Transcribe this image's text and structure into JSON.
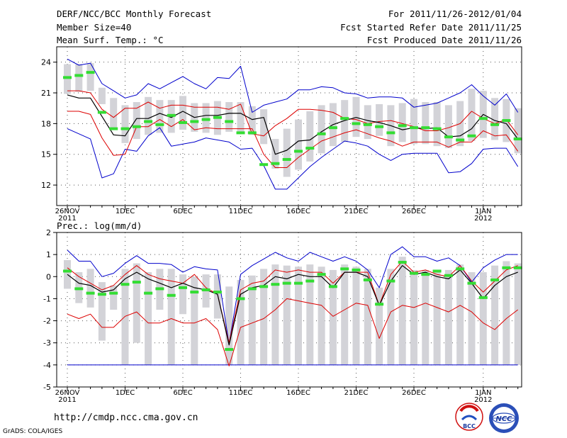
{
  "header": {
    "title": "DERF/NCC/BCC Monthly Forecast",
    "member_size": "Member Size=40",
    "variable": "Mean Surf. Temp.: °C",
    "period": "For 2011/11/26-2012/01/04",
    "started": "Fcst Started Refer Date 2011/11/25",
    "produced": "Fcst Produced Date 2011/11/26"
  },
  "footer": {
    "url": "http://cmdp.ncc.cma.gov.cn",
    "grads": "GrADS: COLA/IGES",
    "logo_bcc": "BCC",
    "logo_ncc": "NCC"
  },
  "colors": {
    "box": "#d3d3d8",
    "envelope": "#0000cc",
    "spread": "#dd0000",
    "mean": "#000000",
    "median": "#33dd33"
  },
  "chart_data": [
    {
      "type": "box",
      "title": "Mean Surf. Temp.: °C",
      "ylim": [
        10,
        25.5
      ],
      "yticks": [
        12,
        15,
        18,
        21,
        24
      ],
      "grid": true,
      "xlim": [
        0,
        39.5
      ],
      "x_ticks": [
        {
          "day": 0,
          "label": "26NOV",
          "sub": "2011"
        },
        {
          "day": 5,
          "label": "1DEC",
          "sub": ""
        },
        {
          "day": 10,
          "label": "6DEC",
          "sub": ""
        },
        {
          "day": 15,
          "label": "11DEC",
          "sub": ""
        },
        {
          "day": 20,
          "label": "16DEC",
          "sub": ""
        },
        {
          "day": 25,
          "label": "21DEC",
          "sub": ""
        },
        {
          "day": 30,
          "label": "26DEC",
          "sub": ""
        },
        {
          "day": 36,
          "label": "1JAN",
          "sub": "2012"
        }
      ],
      "box_low": [
        20.9,
        21.1,
        21.2,
        19.9,
        17.6,
        16.1,
        16.5,
        16.9,
        17.1,
        17.1,
        17.4,
        17.2,
        17.1,
        16.9,
        17.2,
        17.0,
        16.9,
        16.0,
        13.6,
        12.8,
        13.5,
        14.3,
        15.1,
        15.8,
        16.2,
        16.7,
        16.5,
        16.8,
        15.8,
        16.2,
        16.0,
        16.0,
        15.8,
        15.6,
        15.8,
        16.3,
        16.6,
        16.4,
        16.2,
        15.1
      ],
      "box_high": [
        23.8,
        23.8,
        23.9,
        21.5,
        20.5,
        19.8,
        20.1,
        20.6,
        20.3,
        20.3,
        20.7,
        20.0,
        20.0,
        20.2,
        20.1,
        20.1,
        19.7,
        19.4,
        16.5,
        17.5,
        18.4,
        19.2,
        19.8,
        20.0,
        20.3,
        20.6,
        19.8,
        19.9,
        19.8,
        20.0,
        20.4,
        20.1,
        20.1,
        19.8,
        20.2,
        21.4,
        21.2,
        20.5,
        20.4,
        19.5
      ],
      "max": [
        24.3,
        23.7,
        23.9,
        21.9,
        21.2,
        20.5,
        20.8,
        21.9,
        21.4,
        22.0,
        22.6,
        21.9,
        21.4,
        22.5,
        22.4,
        23.6,
        19.1,
        19.8,
        20.1,
        20.4,
        21.3,
        21.3,
        21.6,
        21.5,
        21.0,
        20.9,
        20.5,
        20.6,
        20.6,
        20.5,
        19.6,
        19.8,
        20.0,
        20.5,
        21.0,
        21.8,
        20.7,
        19.8,
        20.9,
        19.1
      ],
      "spread_high": [
        21.2,
        21.2,
        21.0,
        19.4,
        18.6,
        19.5,
        19.5,
        20.1,
        19.5,
        19.8,
        19.8,
        19.6,
        19.6,
        19.6,
        19.4,
        19.9,
        17.0,
        16.8,
        17.8,
        18.5,
        19.4,
        19.4,
        19.3,
        19.1,
        18.5,
        18.4,
        18.0,
        18.2,
        18.3,
        18.0,
        17.7,
        17.3,
        17.3,
        17.6,
        18.0,
        19.2,
        18.5,
        18.0,
        18.4,
        16.9
      ],
      "mean": [
        20.8,
        20.5,
        20.5,
        18.7,
        16.9,
        16.8,
        18.5,
        18.5,
        19.0,
        18.6,
        19.2,
        18.6,
        18.8,
        18.8,
        19.0,
        19.0,
        18.4,
        18.6,
        15.0,
        15.4,
        16.3,
        16.4,
        17.2,
        17.9,
        18.3,
        18.6,
        18.3,
        18.1,
        17.8,
        17.4,
        17.6,
        17.5,
        17.6,
        16.7,
        16.8,
        17.5,
        18.9,
        18.3,
        18.0,
        16.5
      ],
      "spread_low": [
        19.2,
        19.2,
        18.9,
        16.6,
        14.9,
        15.0,
        17.7,
        17.7,
        18.4,
        17.7,
        18.4,
        17.4,
        17.6,
        17.5,
        17.5,
        17.5,
        17.5,
        15.0,
        13.7,
        13.7,
        14.7,
        15.5,
        16.3,
        16.7,
        17.1,
        17.4,
        17.0,
        16.6,
        16.3,
        15.8,
        16.2,
        16.2,
        16.2,
        15.7,
        16.2,
        16.2,
        17.3,
        16.8,
        16.9,
        15.3
      ],
      "min": [
        17.5,
        17.0,
        16.5,
        12.7,
        13.1,
        15.5,
        15.3,
        16.8,
        17.6,
        15.8,
        16.0,
        16.2,
        16.6,
        16.4,
        16.2,
        15.5,
        15.6,
        13.9,
        11.6,
        11.6,
        12.7,
        13.8,
        14.7,
        15.5,
        16.3,
        16.1,
        15.8,
        15.0,
        14.4,
        15.0,
        15.1,
        15.1,
        15.1,
        13.2,
        13.3,
        14.1,
        15.5,
        15.6,
        15.6,
        13.8
      ],
      "median": [
        22.5,
        22.7,
        23.0,
        19.1,
        17.5,
        17.5,
        17.7,
        18.2,
        17.9,
        18.8,
        18.1,
        18.2,
        18.4,
        18.6,
        18.2,
        17.1,
        17.1,
        14.0,
        14.1,
        14.5,
        15.3,
        15.6,
        17.0,
        17.6,
        18.5,
        18.0,
        17.9,
        17.7,
        17.1,
        17.8,
        17.6,
        17.6,
        17.5,
        16.7,
        16.4,
        16.8,
        18.5,
        17.9,
        18.3,
        16.5
      ]
    },
    {
      "type": "box",
      "title": "Prec.: log(mm/d)",
      "ylim": [
        -5,
        2
      ],
      "yticks": [
        -5,
        -4,
        -3,
        -2,
        -1,
        0,
        1,
        2
      ],
      "grid": true,
      "xlim": [
        0,
        39.5
      ],
      "x_ticks": [
        {
          "day": 0,
          "label": "26NOV",
          "sub": "2011"
        },
        {
          "day": 5,
          "label": "1DEC",
          "sub": ""
        },
        {
          "day": 10,
          "label": "6DEC",
          "sub": ""
        },
        {
          "day": 15,
          "label": "11DEC",
          "sub": ""
        },
        {
          "day": 20,
          "label": "16DEC",
          "sub": ""
        },
        {
          "day": 25,
          "label": "21DEC",
          "sub": ""
        },
        {
          "day": 30,
          "label": "26DEC",
          "sub": ""
        },
        {
          "day": 36,
          "label": "1JAN",
          "sub": "2012"
        }
      ],
      "box_low": [
        -0.55,
        -1.2,
        -1.4,
        -2.9,
        -1.5,
        -4.0,
        -3.0,
        -4.0,
        -1.5,
        -4.0,
        -1.7,
        -4.0,
        -1.4,
        -1.9,
        -4.0,
        -4.0,
        -4.0,
        -4.0,
        -4.0,
        -4.0,
        -4.0,
        -4.0,
        -4.0,
        -4.0,
        -4.0,
        -4.0,
        -4.0,
        -4.0,
        -4.0,
        -4.0,
        -4.0,
        -4.0,
        -4.0,
        -4.0,
        -4.0,
        -4.0,
        -4.0,
        -4.0,
        -4.0,
        -4.0
      ],
      "box_high": [
        0.75,
        0.2,
        0.35,
        -0.25,
        -0.4,
        0.35,
        0.6,
        0.2,
        0.35,
        0.35,
        0.1,
        0.0,
        0.1,
        0.1,
        -0.45,
        -0.15,
        0.05,
        0.35,
        0.55,
        0.5,
        0.45,
        0.55,
        0.45,
        0.3,
        0.55,
        0.45,
        0.35,
        -0.5,
        0.35,
        0.9,
        0.3,
        0.3,
        0.25,
        0.3,
        0.55,
        0.2,
        0.2,
        0.5,
        0.7,
        0.6
      ],
      "max": [
        1.2,
        0.7,
        0.7,
        0.0,
        0.15,
        0.6,
        0.95,
        0.6,
        0.6,
        0.55,
        0.2,
        0.45,
        0.35,
        0.3,
        -3.05,
        0.1,
        0.5,
        0.8,
        1.1,
        0.85,
        0.7,
        1.1,
        0.9,
        0.7,
        0.9,
        0.7,
        0.3,
        -0.5,
        1.0,
        1.35,
        0.9,
        0.9,
        0.7,
        0.85,
        0.5,
        -0.25,
        0.4,
        0.75,
        1.0,
        1.0
      ],
      "spread_high": [
        0.4,
        0.0,
        -0.3,
        -0.6,
        -0.4,
        0.1,
        0.5,
        0.1,
        -0.1,
        -0.2,
        -0.3,
        0.1,
        -0.5,
        -0.8,
        -3.0,
        -0.6,
        -0.3,
        -0.2,
        0.3,
        0.2,
        0.3,
        0.2,
        0.2,
        -0.3,
        0.2,
        0.2,
        0.2,
        -1.3,
        0.1,
        0.7,
        0.2,
        0.3,
        0.1,
        0.0,
        0.5,
        -0.2,
        -0.7,
        -0.2,
        0.3,
        0.5
      ],
      "mean": [
        0.1,
        -0.3,
        -0.4,
        -0.7,
        -0.6,
        -0.1,
        0.2,
        -0.1,
        -0.3,
        -0.5,
        -0.3,
        -0.5,
        -0.6,
        -0.8,
        -3.1,
        -0.8,
        -0.5,
        -0.4,
        0.0,
        -0.1,
        0.1,
        0.0,
        0.0,
        -0.5,
        0.2,
        0.2,
        0.0,
        -1.3,
        -0.2,
        0.5,
        0.1,
        0.2,
        0.0,
        -0.1,
        0.3,
        -0.3,
        -1.0,
        -0.4,
        0.0,
        0.2
      ],
      "spread_low": [
        -1.7,
        -1.9,
        -1.7,
        -2.3,
        -2.3,
        -1.8,
        -1.6,
        -2.1,
        -2.1,
        -1.9,
        -2.1,
        -2.1,
        -1.9,
        -2.4,
        -4.05,
        -2.3,
        -2.1,
        -1.9,
        -1.5,
        -1.0,
        -1.1,
        -1.2,
        -1.3,
        -1.8,
        -1.5,
        -1.2,
        -1.3,
        -2.8,
        -1.6,
        -1.3,
        -1.4,
        -1.2,
        -1.4,
        -1.6,
        -1.3,
        -1.6,
        -2.1,
        -2.4,
        -1.9,
        -1.5
      ],
      "min": [
        -4.0,
        -4.0,
        -4.0,
        -4.0,
        -4.0,
        -4.0,
        -4.0,
        -4.0,
        -4.0,
        -4.0,
        -4.0,
        -4.0,
        -4.0,
        -4.0,
        -4.0,
        -4.0,
        -4.0,
        -4.0,
        -4.0,
        -4.0,
        -4.0,
        -4.0,
        -4.0,
        -4.0,
        -4.0,
        -4.0,
        -4.0,
        -4.0,
        -4.0,
        -4.0,
        -4.0,
        -4.0,
        -4.0,
        -4.0,
        -4.0,
        -4.0,
        -4.0,
        -4.0,
        -4.0,
        -4.0
      ],
      "median": [
        0.25,
        -0.55,
        -0.75,
        -0.8,
        -0.75,
        -0.35,
        -0.25,
        -0.75,
        -0.55,
        -0.85,
        -0.5,
        -0.7,
        -0.6,
        -0.7,
        -3.3,
        -1.0,
        -0.55,
        -0.45,
        -0.35,
        -0.3,
        -0.3,
        -0.2,
        0.1,
        -0.45,
        0.35,
        0.3,
        -0.15,
        -1.25,
        -0.2,
        0.65,
        0.15,
        0.1,
        0.25,
        0.05,
        0.35,
        -0.3,
        -0.95,
        -0.15,
        0.4,
        0.4
      ]
    }
  ]
}
